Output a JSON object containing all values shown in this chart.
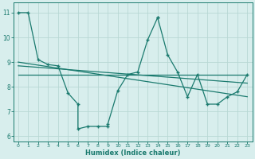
{
  "xlabel": "Humidex (Indice chaleur)",
  "bg_color": "#d8eeed",
  "grid_color": "#b8d8d4",
  "line_color": "#1a7a6e",
  "xlim": [
    -0.5,
    23.5
  ],
  "ylim": [
    5.8,
    11.4
  ],
  "yticks": [
    6,
    7,
    8,
    9,
    10,
    11
  ],
  "xticks": [
    0,
    1,
    2,
    3,
    4,
    5,
    6,
    7,
    8,
    9,
    10,
    11,
    12,
    13,
    14,
    15,
    16,
    17,
    18,
    19,
    20,
    21,
    22,
    23
  ],
  "series1_x": [
    0,
    1,
    2,
    3,
    4,
    5,
    6,
    6,
    7,
    8,
    9,
    9,
    10,
    11,
    12,
    13,
    14,
    14,
    15,
    16,
    17,
    18,
    19,
    20,
    21,
    22,
    23
  ],
  "series1_y": [
    11,
    11,
    9.1,
    8.9,
    8.85,
    7.75,
    7.3,
    6.3,
    6.4,
    6.4,
    6.4,
    6.5,
    7.85,
    8.5,
    8.6,
    9.9,
    10.8,
    10.8,
    9.3,
    8.6,
    7.6,
    8.5,
    7.3,
    7.3,
    7.6,
    7.8,
    8.5
  ],
  "line1_x": [
    0,
    23
  ],
  "line1_y": [
    8.5,
    8.5
  ],
  "line2_x": [
    0,
    23
  ],
  "line2_y": [
    9.0,
    7.6
  ],
  "line3_x": [
    0,
    23
  ],
  "line3_y": [
    8.85,
    8.15
  ]
}
